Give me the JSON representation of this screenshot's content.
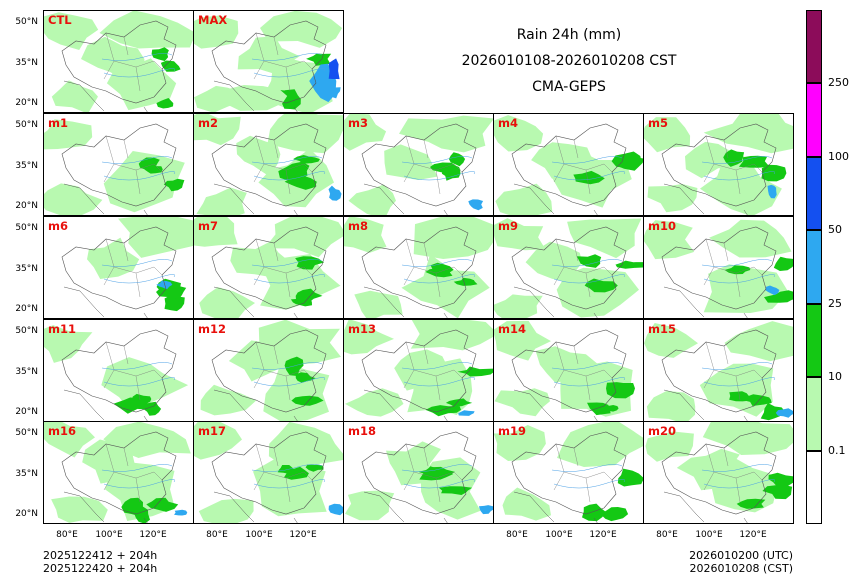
{
  "title": {
    "line1": "Rain 24h (mm)",
    "line2": "2026010108-2026010208 CST",
    "line3": "CMA-GEPS"
  },
  "panels": [
    "CTL",
    "MAX",
    "m1",
    "m2",
    "m3",
    "m4",
    "m5",
    "m6",
    "m7",
    "m8",
    "m9",
    "m10",
    "m11",
    "m12",
    "m13",
    "m14",
    "m15",
    "m16",
    "m17",
    "m18",
    "m19",
    "m20"
  ],
  "lat_ticks": [
    "50°N",
    "35°N",
    "20°N"
  ],
  "lon_ticks": [
    "80°E",
    "100°E",
    "120°E"
  ],
  "footer": {
    "left1": "2025122412 + 204h",
    "left2": "2025122420 + 204h",
    "right1": "2026010200 (UTC)",
    "right2": "2026010208 (CST)"
  },
  "colorbar": {
    "labels": [
      "0.1",
      "10",
      "25",
      "50",
      "100",
      "250"
    ],
    "colors": [
      "#ffffff",
      "#b8f9b0",
      "#14c814",
      "#2ea8f0",
      "#1450f0",
      "#ff00ff",
      "#8c0c5a"
    ]
  }
}
